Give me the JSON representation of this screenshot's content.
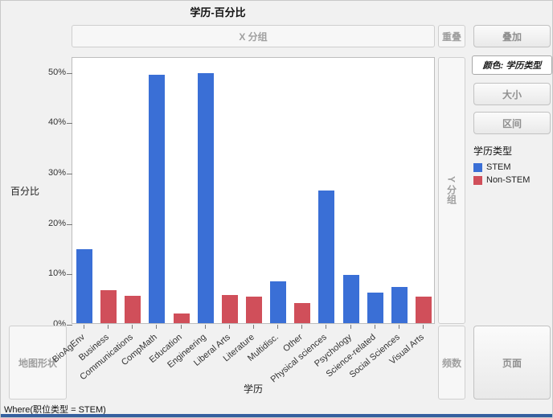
{
  "zones": {
    "x_group": "X 分组",
    "overlap": "重叠",
    "overlay": "叠加",
    "color": "颜色: 学历类型",
    "size": "大小",
    "interval": "区间",
    "y_group": "Y 分组",
    "map_shape": "地图形状",
    "freq": "频数",
    "page": "页面"
  },
  "legend": {
    "title": "学历类型",
    "items": [
      {
        "label": "STEM",
        "color": "#3a6fd6"
      },
      {
        "label": "Non-STEM",
        "color": "#d04f5a"
      }
    ]
  },
  "status_bar": "Where(职位类型 = STEM)",
  "chart_data": {
    "type": "bar",
    "title": "学历-百分比",
    "xlabel": "学历",
    "ylabel": "百分比",
    "ylim": [
      0,
      53
    ],
    "yticks": [
      0,
      10,
      20,
      30,
      40,
      50
    ],
    "ytick_labels": [
      "0%",
      "10%",
      "20%",
      "30%",
      "40%",
      "50%"
    ],
    "grid": false,
    "legend_position": "right",
    "categories": [
      "BioAgEnv",
      "Business",
      "Communications",
      "CompMath",
      "Education",
      "Engineering",
      "Liberal Arts",
      "Literature",
      "Multidisc.",
      "Other",
      "Physical sciences",
      "Psychology",
      "Science-related",
      "Social Sciences",
      "Visual Arts"
    ],
    "points": [
      {
        "category": "BioAgEnv",
        "value": 14.7,
        "group": "STEM"
      },
      {
        "category": "Business",
        "value": 6.5,
        "group": "Non-STEM"
      },
      {
        "category": "Communications",
        "value": 5.4,
        "group": "Non-STEM"
      },
      {
        "category": "CompMath",
        "value": 49.3,
        "group": "STEM"
      },
      {
        "category": "Education",
        "value": 1.9,
        "group": "Non-STEM"
      },
      {
        "category": "Engineering",
        "value": 49.7,
        "group": "STEM"
      },
      {
        "category": "Liberal Arts",
        "value": 5.6,
        "group": "Non-STEM"
      },
      {
        "category": "Literature",
        "value": 5.3,
        "group": "Non-STEM"
      },
      {
        "category": "Multidisc.",
        "value": 8.3,
        "group": "STEM"
      },
      {
        "category": "Other",
        "value": 4.0,
        "group": "Non-STEM"
      },
      {
        "category": "Physical sciences",
        "value": 26.4,
        "group": "STEM"
      },
      {
        "category": "Psychology",
        "value": 9.6,
        "group": "STEM"
      },
      {
        "category": "Science-related",
        "value": 6.1,
        "group": "STEM"
      },
      {
        "category": "Social Sciences",
        "value": 7.2,
        "group": "STEM"
      },
      {
        "category": "Visual Arts",
        "value": 5.2,
        "group": "Non-STEM"
      }
    ]
  }
}
